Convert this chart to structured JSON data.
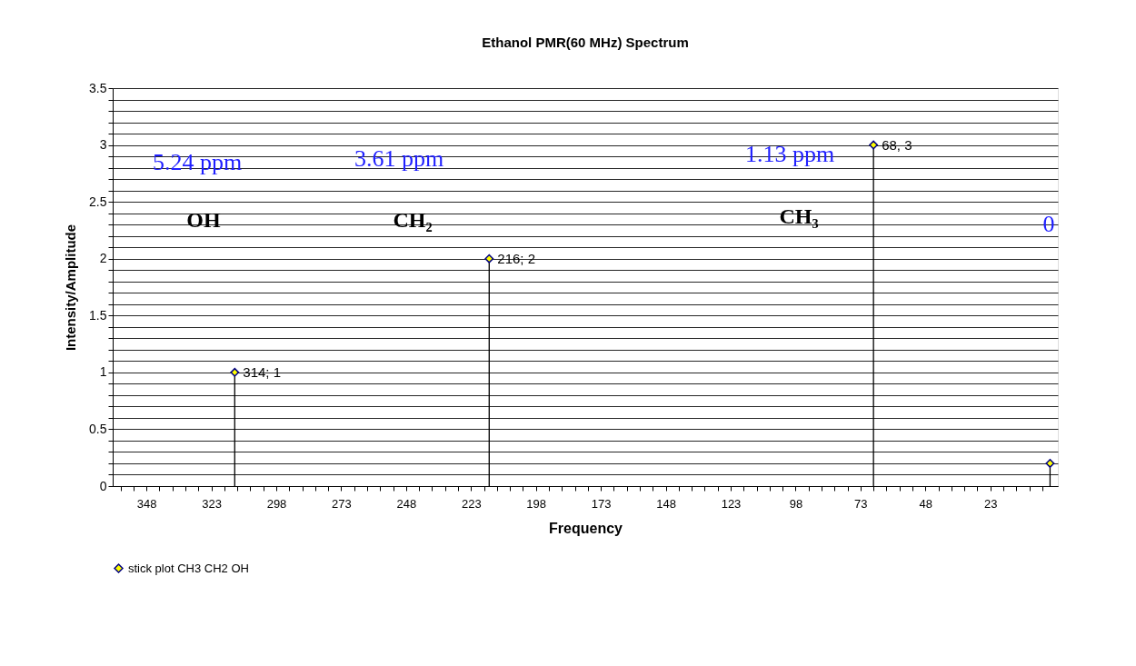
{
  "chart_data": {
    "type": "lollipop",
    "title": "Ethanol PMR(60 MHz) Spectrum",
    "xlabel": "Frequency",
    "ylabel": "Intensity/Amplitude",
    "x": [
      314,
      216,
      68,
      0
    ],
    "series": [
      {
        "name": "stick plot CH3 CH2 OH",
        "color": "#000080",
        "values": [
          1,
          2,
          3,
          0.2
        ],
        "value_labels": [
          "314; 1",
          "216; 2",
          "68, 3",
          null
        ]
      }
    ],
    "marker": "diamond",
    "legend": "bottom",
    "grid": "y",
    "xlim": [
      361,
      -3
    ],
    "ylim": [
      0,
      3.5
    ],
    "xticks": [
      {
        "value": 358,
        "label": null
      },
      {
        "value": 353,
        "label": null
      },
      348,
      {
        "value": 343,
        "label": null
      },
      {
        "value": 338,
        "label": null
      },
      {
        "value": 333,
        "label": null
      },
      {
        "value": 328,
        "label": null
      },
      323,
      {
        "value": 318,
        "label": null
      },
      {
        "value": 313,
        "label": null
      },
      {
        "value": 308,
        "label": null
      },
      {
        "value": 303,
        "label": null
      },
      298,
      {
        "value": 293,
        "label": null
      },
      {
        "value": 288,
        "label": null
      },
      {
        "value": 283,
        "label": null
      },
      {
        "value": 278,
        "label": null
      },
      273,
      {
        "value": 268,
        "label": null
      },
      {
        "value": 263,
        "label": null
      },
      {
        "value": 258,
        "label": null
      },
      {
        "value": 253,
        "label": null
      },
      248,
      {
        "value": 243,
        "label": null
      },
      {
        "value": 238,
        "label": null
      },
      {
        "value": 233,
        "label": null
      },
      {
        "value": 228,
        "label": null
      },
      223,
      {
        "value": 218,
        "label": null
      },
      {
        "value": 213,
        "label": null
      },
      {
        "value": 208,
        "label": null
      },
      {
        "value": 203,
        "label": null
      },
      198,
      {
        "value": 193,
        "label": null
      },
      {
        "value": 188,
        "label": null
      },
      {
        "value": 183,
        "label": null
      },
      {
        "value": 178,
        "label": null
      },
      173,
      {
        "value": 168,
        "label": null
      },
      {
        "value": 163,
        "label": null
      },
      {
        "value": 158,
        "label": null
      },
      {
        "value": 153,
        "label": null
      },
      148,
      {
        "value": 143,
        "label": null
      },
      {
        "value": 138,
        "label": null
      },
      {
        "value": 133,
        "label": null
      },
      {
        "value": 128,
        "label": null
      },
      123,
      {
        "value": 118,
        "label": null
      },
      {
        "value": 113,
        "label": null
      },
      {
        "value": 108,
        "label": null
      },
      {
        "value": 103,
        "label": null
      },
      98,
      {
        "value": 93,
        "label": null
      },
      {
        "value": 88,
        "label": null
      },
      {
        "value": 83,
        "label": null
      },
      {
        "value": 78,
        "label": null
      },
      73,
      {
        "value": 68,
        "label": null
      },
      {
        "value": 63,
        "label": null
      },
      {
        "value": 58,
        "label": null
      },
      {
        "value": 53,
        "label": null
      },
      48,
      {
        "value": 43,
        "label": null
      },
      {
        "value": 38,
        "label": null
      },
      {
        "value": 33,
        "label": null
      },
      {
        "value": 28,
        "label": null
      },
      23,
      {
        "value": 18,
        "label": null
      },
      {
        "value": 13,
        "label": null
      },
      {
        "value": 8,
        "label": null
      },
      {
        "value": 3,
        "label": null
      }
    ],
    "yticks": [
      0,
      {
        "value": 0.1,
        "label": null
      },
      {
        "value": 0.2,
        "label": null
      },
      {
        "value": 0.3,
        "label": null
      },
      {
        "value": 0.4,
        "label": null
      },
      0.5,
      {
        "value": 0.6,
        "label": null
      },
      {
        "value": 0.7,
        "label": null
      },
      {
        "value": 0.8,
        "label": null
      },
      {
        "value": 0.9,
        "label": null
      },
      1,
      {
        "value": 1.1,
        "label": null
      },
      {
        "value": 1.2,
        "label": null
      },
      {
        "value": 1.3,
        "label": null
      },
      {
        "value": 1.4,
        "label": null
      },
      1.5,
      {
        "value": 1.6,
        "label": null
      },
      {
        "value": 1.7,
        "label": null
      },
      {
        "value": 1.8,
        "label": null
      },
      {
        "value": 1.9,
        "label": null
      },
      2,
      {
        "value": 2.1,
        "label": null
      },
      {
        "value": 2.2,
        "label": null
      },
      {
        "value": 2.3,
        "label": null
      },
      {
        "value": 2.4,
        "label": null
      },
      2.5,
      {
        "value": 2.6,
        "label": null
      },
      {
        "value": 2.7,
        "label": null
      },
      {
        "value": 2.8,
        "label": null
      },
      {
        "value": 2.9,
        "label": null
      },
      3,
      {
        "value": 3.1,
        "label": null
      },
      {
        "value": 3.2,
        "label": null
      },
      {
        "value": 3.3,
        "label": null
      },
      {
        "value": 3.4,
        "label": null
      },
      3.5
    ],
    "annotations": [
      "5.24 ppm",
      "3.61 ppm",
      "1.13 ppm",
      "0",
      "OH",
      "CH₂",
      "CH₃"
    ]
  }
}
